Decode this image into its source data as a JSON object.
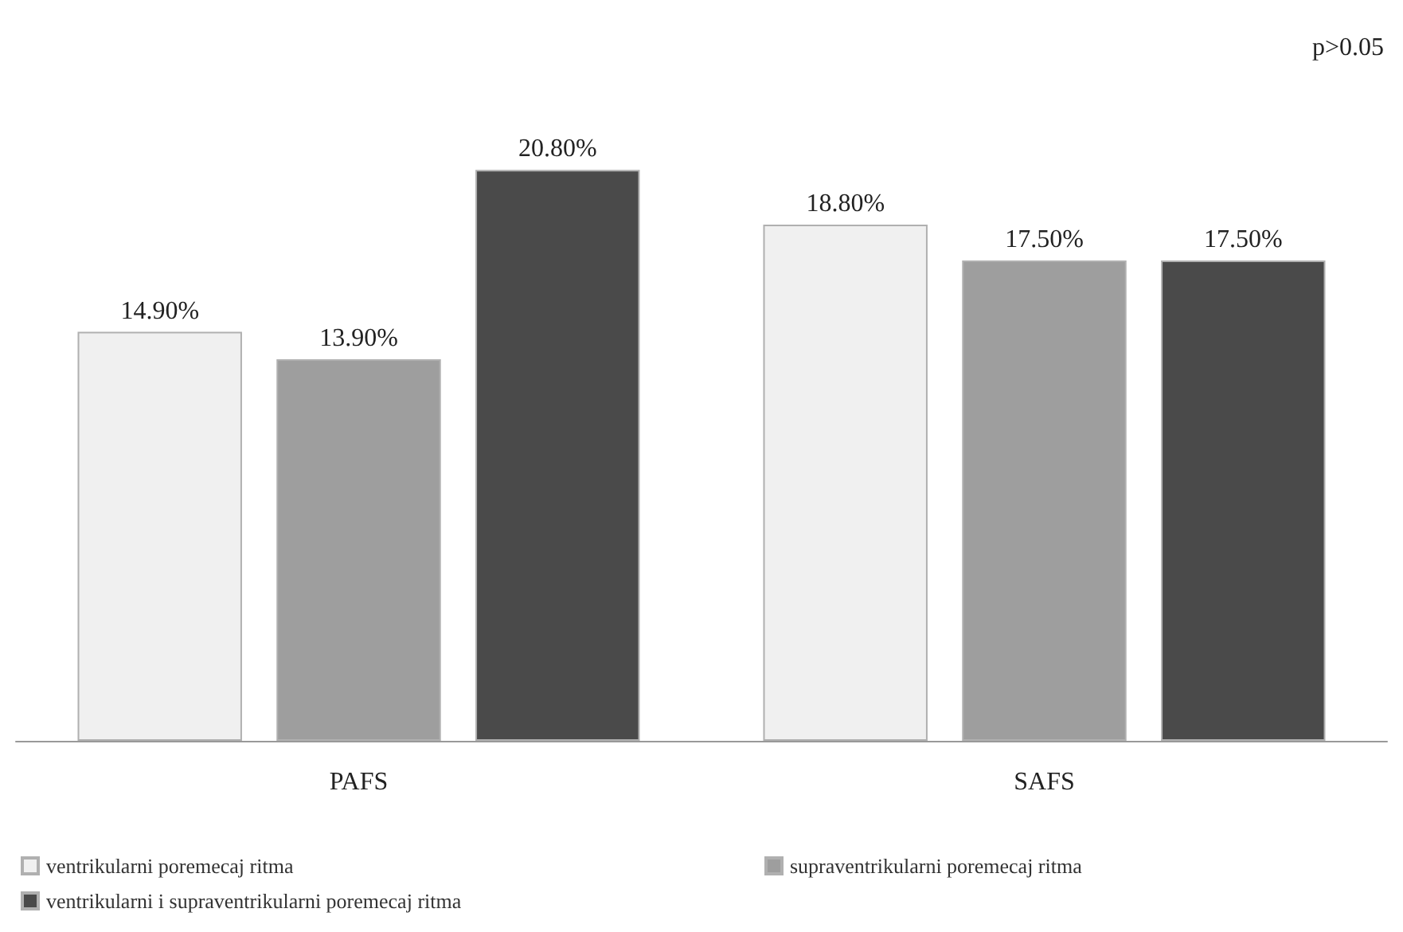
{
  "chart_data": {
    "type": "bar",
    "categories": [
      "PAFS",
      "SAFS"
    ],
    "series": [
      {
        "name": "ventrikularni poremecaj ritma",
        "color": "#f0f0f0",
        "values": [
          14.9,
          18.8
        ],
        "value_labels": [
          "14.90%",
          "18.80%"
        ]
      },
      {
        "name": "supraventrikularni poremecaj ritma",
        "color": "#9e9e9e",
        "values": [
          13.9,
          17.5
        ],
        "value_labels": [
          "13.90%",
          "17.50%"
        ]
      },
      {
        "name": "ventrikularni i supraventrikularni poremecaj ritma",
        "color": "#4a4a4a",
        "values": [
          20.8,
          17.5
        ],
        "value_labels": [
          "20.80%",
          "17.50%"
        ]
      }
    ],
    "annotations": [
      "p>0.05"
    ],
    "legend": "bottom left"
  }
}
